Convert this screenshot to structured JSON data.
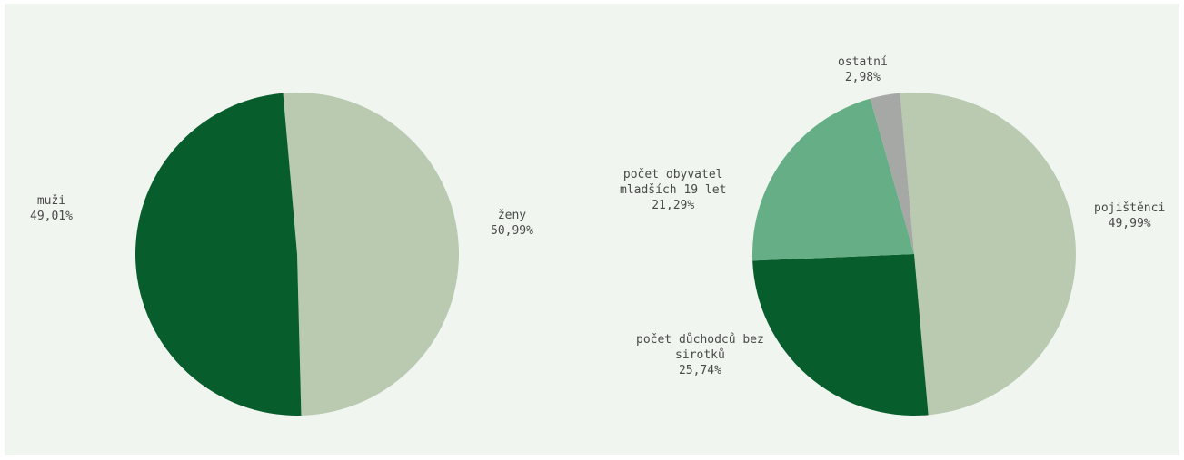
{
  "chart_data": [
    {
      "type": "pie",
      "slices": [
        {
          "label": "ženy",
          "value": 50.99,
          "display": "50,99%",
          "color": "#b9cab1"
        },
        {
          "label": "muži",
          "value": 49.01,
          "display": "49,01%",
          "color": "#075e2c"
        }
      ]
    },
    {
      "type": "pie",
      "slices": [
        {
          "label": "pojištěnci",
          "value": 49.99,
          "display": "49,99%",
          "color": "#b9cab1"
        },
        {
          "label": "počet důchodců bez sirotků",
          "value": 25.74,
          "display": "25,74%",
          "color": "#075e2c"
        },
        {
          "label": "počet obyvatel mladších 19 let",
          "value": 21.29,
          "display": "21,29%",
          "color": "#66ae85"
        },
        {
          "label": "ostatní",
          "value": 2.98,
          "display": "2,98%",
          "color": "#a6a8a6"
        }
      ]
    }
  ],
  "labels": {
    "pie1": {
      "zeny": {
        "line1": "ženy",
        "value": "50,99%"
      },
      "muzi": {
        "line1": "muži",
        "value": "49,01%"
      }
    },
    "pie2": {
      "ostatni": {
        "line1": "ostatní",
        "value": "2,98%"
      },
      "mladsi": {
        "line1": "počet obyvatel",
        "line2": "mladších 19 let",
        "value": "21,29%"
      },
      "pojistenci": {
        "line1": "pojištěnci",
        "value": "49,99%"
      },
      "duchodci": {
        "line1": "počet důchodců bez",
        "line2": "sirotků",
        "value": "25,74%"
      }
    }
  }
}
